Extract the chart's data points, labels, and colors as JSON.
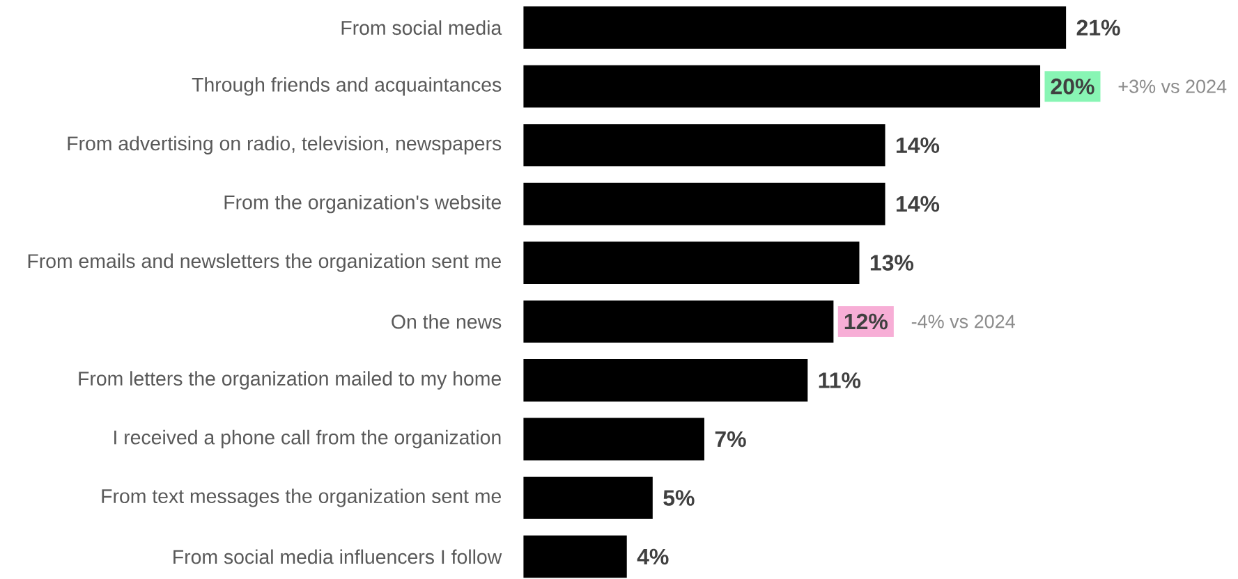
{
  "chart_data": {
    "type": "bar",
    "orientation": "horizontal",
    "categories": [
      "From social media",
      "Through friends and acquaintances",
      "From advertising on radio, television, newspapers",
      "From the organization's website",
      "From emails and newsletters the organization sent me",
      "On the news",
      "From letters the organization mailed to my home",
      "I received a phone call from the organization",
      "From text messages the organization sent me",
      "From social media influencers I follow"
    ],
    "values": [
      21,
      20,
      14,
      14,
      13,
      12,
      11,
      7,
      5,
      4
    ],
    "value_labels": [
      "21%",
      "20%",
      "14%",
      "14%",
      "13%",
      "12%",
      "11%",
      "7%",
      "5%",
      "4%"
    ],
    "color": "#000000",
    "annotations": [
      "+3% vs 2024",
      "-4% vs 2024"
    ],
    "relative": false
  }
}
